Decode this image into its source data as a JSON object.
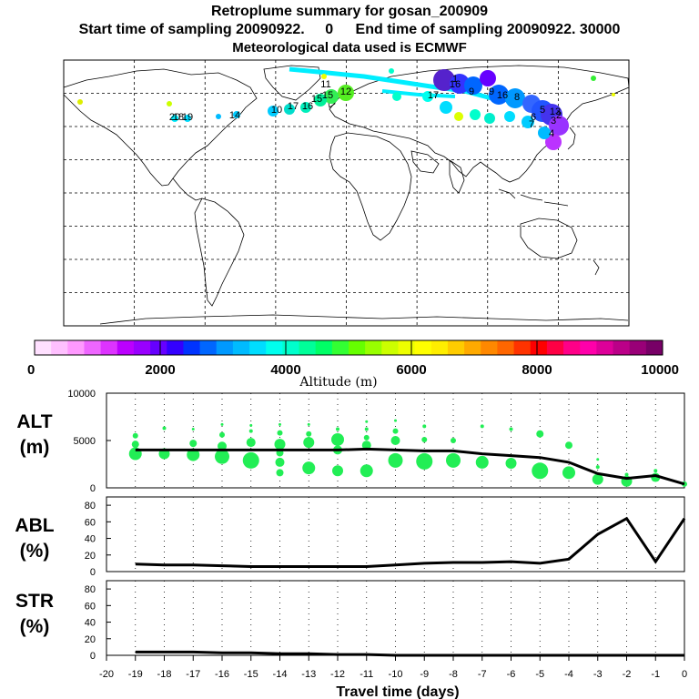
{
  "header": {
    "title": "Retroplume summary for gosan_200909",
    "start_label": "Start time of sampling 20090922.",
    "start_value": "0",
    "end_label": "End time of sampling 20090922. 30000",
    "met_label": "Meteorological data used is ECMWF"
  },
  "colorbar": {
    "label": "Altitude (m)",
    "ticks": [
      "0",
      "2000",
      "4000",
      "6000",
      "8000",
      "10000"
    ],
    "colors": [
      "#ffe0ff",
      "#ffc0ff",
      "#ff99ff",
      "#ee66ff",
      "#dd33ff",
      "#bb00ff",
      "#9900ff",
      "#6600ff",
      "#3300ff",
      "#0033ff",
      "#0066ff",
      "#0099ff",
      "#00bbff",
      "#00ddff",
      "#00ffee",
      "#00ffcc",
      "#00ff99",
      "#00ff66",
      "#33ff33",
      "#66ff00",
      "#99ff00",
      "#ccff00",
      "#eeff00",
      "#ffff00",
      "#ffee00",
      "#ffcc00",
      "#ffaa00",
      "#ff8800",
      "#ff6600",
      "#ff3300",
      "#ff0000",
      "#ff0044",
      "#ff0088",
      "#ff00aa",
      "#dd0099",
      "#bb0088",
      "#990077",
      "#770066"
    ]
  },
  "map": {
    "plume_labels": [
      "16",
      "17",
      "15",
      "12",
      "9",
      "16",
      "10",
      "17",
      "16",
      "15",
      "13",
      "11",
      "9",
      "8",
      "7",
      "6",
      "5",
      "4",
      "3",
      "2",
      "1",
      "18",
      "14",
      "19",
      "20"
    ]
  },
  "chart_data": [
    {
      "type": "line",
      "name": "ALT",
      "ylabel": "ALT",
      "yunit": "(m)",
      "ylim": [
        0,
        10000
      ],
      "yticks": [
        "10000",
        "5000",
        "0"
      ],
      "x": [
        -19,
        -18,
        -17,
        -16,
        -15,
        -14,
        -13,
        -12,
        -11,
        -10,
        -9,
        -8,
        -7,
        -6,
        -5,
        -4,
        -3,
        -2,
        -1,
        0
      ],
      "mean": [
        4000,
        4000,
        4000,
        4000,
        4000,
        4000,
        4000,
        4000,
        4100,
        4000,
        3900,
        3900,
        3600,
        3400,
        3200,
        2700,
        1500,
        1000,
        1300,
        400
      ],
      "scatter_color": "#22ee55",
      "scatter": [
        {
          "x": -19,
          "y": 3600,
          "s": 7
        },
        {
          "x": -19,
          "y": 4600,
          "s": 4
        },
        {
          "x": -19,
          "y": 5500,
          "s": 3
        },
        {
          "x": -18,
          "y": 3600,
          "s": 6
        },
        {
          "x": -18,
          "y": 6300,
          "s": 2
        },
        {
          "x": -17,
          "y": 3500,
          "s": 7
        },
        {
          "x": -17,
          "y": 4700,
          "s": 4
        },
        {
          "x": -17,
          "y": 6200,
          "s": 1.5
        },
        {
          "x": -16,
          "y": 3300,
          "s": 8
        },
        {
          "x": -16,
          "y": 4400,
          "s": 5
        },
        {
          "x": -16,
          "y": 5600,
          "s": 3
        },
        {
          "x": -16,
          "y": 6700,
          "s": 1.5
        },
        {
          "x": -15,
          "y": 2900,
          "s": 9
        },
        {
          "x": -15,
          "y": 4800,
          "s": 5
        },
        {
          "x": -15,
          "y": 6000,
          "s": 2
        },
        {
          "x": -15,
          "y": 6600,
          "s": 1.5
        },
        {
          "x": -14,
          "y": 1600,
          "s": 4
        },
        {
          "x": -14,
          "y": 2700,
          "s": 5
        },
        {
          "x": -14,
          "y": 3700,
          "s": 4
        },
        {
          "x": -14,
          "y": 4600,
          "s": 6
        },
        {
          "x": -14,
          "y": 5800,
          "s": 3
        },
        {
          "x": -14,
          "y": 6700,
          "s": 1.5
        },
        {
          "x": -13,
          "y": 2100,
          "s": 7
        },
        {
          "x": -13,
          "y": 4800,
          "s": 6
        },
        {
          "x": -13,
          "y": 5700,
          "s": 3
        },
        {
          "x": -13,
          "y": 6700,
          "s": 1.5
        },
        {
          "x": -12,
          "y": 1800,
          "s": 6
        },
        {
          "x": -12,
          "y": 4000,
          "s": 5
        },
        {
          "x": -12,
          "y": 5100,
          "s": 7
        },
        {
          "x": -12,
          "y": 6200,
          "s": 2
        },
        {
          "x": -11,
          "y": 1800,
          "s": 7
        },
        {
          "x": -11,
          "y": 4500,
          "s": 5
        },
        {
          "x": -11,
          "y": 5300,
          "s": 3
        },
        {
          "x": -11,
          "y": 6200,
          "s": 2
        },
        {
          "x": -11,
          "y": 7000,
          "s": 1.5
        },
        {
          "x": -10,
          "y": 2900,
          "s": 8
        },
        {
          "x": -10,
          "y": 5000,
          "s": 5
        },
        {
          "x": -10,
          "y": 6000,
          "s": 3
        },
        {
          "x": -10,
          "y": 7100,
          "s": 1.5
        },
        {
          "x": -9,
          "y": 2800,
          "s": 9
        },
        {
          "x": -9,
          "y": 5100,
          "s": 3
        },
        {
          "x": -9,
          "y": 6500,
          "s": 2
        },
        {
          "x": -8,
          "y": 2900,
          "s": 8
        },
        {
          "x": -8,
          "y": 5000,
          "s": 3
        },
        {
          "x": -7,
          "y": 2700,
          "s": 7
        },
        {
          "x": -7,
          "y": 6500,
          "s": 2
        },
        {
          "x": -6,
          "y": 2600,
          "s": 6
        },
        {
          "x": -6,
          "y": 6200,
          "s": 2
        },
        {
          "x": -5,
          "y": 1800,
          "s": 9
        },
        {
          "x": -5,
          "y": 5700,
          "s": 4
        },
        {
          "x": -4,
          "y": 1600,
          "s": 7
        },
        {
          "x": -4,
          "y": 4500,
          "s": 4
        },
        {
          "x": -3,
          "y": 900,
          "s": 6
        },
        {
          "x": -3,
          "y": 2200,
          "s": 2
        },
        {
          "x": -3,
          "y": 3000,
          "s": 1.5
        },
        {
          "x": -2,
          "y": 700,
          "s": 6
        },
        {
          "x": -2,
          "y": 1400,
          "s": 2
        },
        {
          "x": -1,
          "y": 1100,
          "s": 5
        },
        {
          "x": -1,
          "y": 1800,
          "s": 2
        },
        {
          "x": 0,
          "y": 400,
          "s": 3
        }
      ]
    },
    {
      "type": "line",
      "name": "ABL",
      "ylabel": "ABL",
      "yunit": "(%)",
      "ylim": [
        0,
        90
      ],
      "yticks": [
        "80",
        "60",
        "40",
        "20",
        "0"
      ],
      "x": [
        -19,
        -18,
        -17,
        -16,
        -15,
        -14,
        -13,
        -12,
        -11,
        -10,
        -9,
        -8,
        -7,
        -6,
        -5,
        -4,
        -3,
        -2,
        -1,
        0
      ],
      "values": [
        9,
        8,
        8,
        7,
        6,
        6,
        6,
        6,
        6,
        8,
        10,
        11,
        11,
        12,
        10,
        15,
        45,
        64,
        12,
        64
      ]
    },
    {
      "type": "line",
      "name": "STR",
      "ylabel": "STR",
      "yunit": "(%)",
      "ylim": [
        0,
        90
      ],
      "yticks": [
        "80",
        "60",
        "40",
        "20",
        "0"
      ],
      "x": [
        -19,
        -18,
        -17,
        -16,
        -15,
        -14,
        -13,
        -12,
        -11,
        -10,
        -9,
        -8,
        -7,
        -6,
        -5,
        -4,
        -3,
        -2,
        -1,
        0
      ],
      "values": [
        4,
        4,
        4,
        3,
        3,
        2,
        2,
        1,
        1,
        0,
        0,
        0,
        0,
        0,
        0,
        0,
        0,
        0,
        0,
        0
      ]
    }
  ],
  "xaxis": {
    "label": "Travel time (days)",
    "ticks": [
      "-20",
      "-19",
      "-18",
      "-17",
      "-16",
      "-15",
      "-14",
      "-13",
      "-12",
      "-11",
      "-10",
      "-9",
      "-8",
      "-7",
      "-6",
      "-5",
      "-4",
      "-3",
      "-2",
      "-1",
      "0"
    ]
  }
}
